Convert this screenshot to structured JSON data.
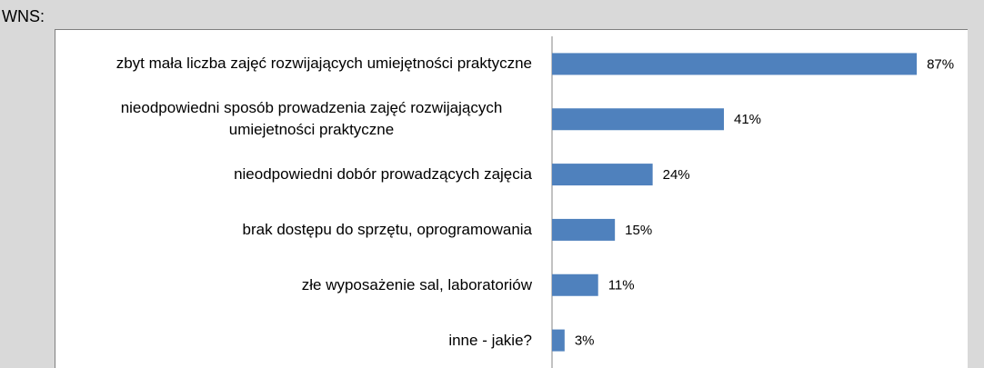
{
  "header": "WNS:",
  "chart_data": {
    "type": "bar",
    "orientation": "horizontal",
    "categories": [
      "zbyt mała liczba zajęć rozwijających umiejętności praktyczne",
      "nieodpowiedni sposób prowadzenia zajęć rozwijających umiejetności praktyczne",
      "nieodpowiedni dobór prowadzących zajęcia",
      "brak dostępu do sprzętu, oprogramowania",
      "złe wyposażenie sal, laboratoriów",
      "inne - jakie?"
    ],
    "values": [
      87,
      41,
      24,
      15,
      11,
      3
    ],
    "value_labels": [
      "87%",
      "41%",
      "24%",
      "15%",
      "11%",
      "3%"
    ],
    "color": "#4f81bd",
    "xlim": [
      0,
      100
    ]
  }
}
